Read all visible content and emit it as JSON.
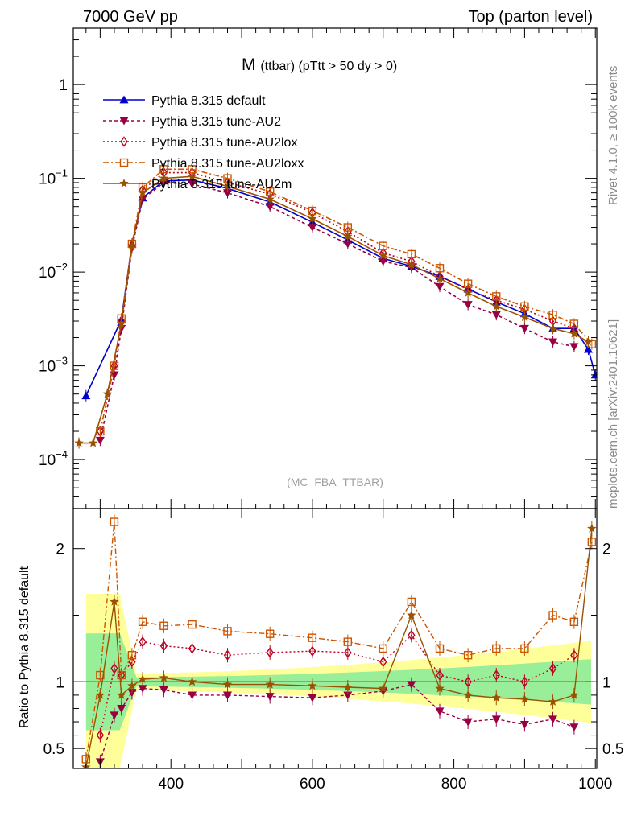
{
  "header": {
    "left": "7000 GeV pp",
    "right": "Top (parton level)"
  },
  "sidebar": {
    "rivet": "Rivet 4.1.0, ≥ 100k events",
    "mcplots": "mcplots.cern.ch [arXiv:2401.10621]"
  },
  "chart_data": {
    "type": "line",
    "title": "M",
    "title_sub": "(ttbar) (pTtt > 50 dy > 0)",
    "analysis_label": "(MC_FBA_TTBAR)",
    "xlabel": "",
    "ylabel": "",
    "ratio_ylabel": "Ratio to Pythia 8.315 default",
    "xlim": [
      262,
      1002
    ],
    "ylim": [
      3e-05,
      4
    ],
    "yscale": "log",
    "ratio_ylim": [
      0.35,
      2.3
    ],
    "x_ticks": [
      "400",
      "600",
      "800",
      "1000"
    ],
    "y_ticks": [
      "1",
      "10^-1",
      "10^-2",
      "10^-3",
      "10^-4"
    ],
    "ratio_ticks": [
      "2",
      "1",
      "0.5"
    ],
    "legend": [
      "Pythia 8.315 default",
      "Pythia 8.315 tune-AU2",
      "Pythia 8.315 tune-AU2lox",
      "Pythia 8.315 tune-AU2loxx",
      "Pythia 8.315 tune-AU2m"
    ],
    "series": [
      {
        "name": "Pythia 8.315 default",
        "color": "#0000cc",
        "marker": "triangle-up",
        "dash": "solid",
        "x": [
          280,
          330,
          345,
          360,
          390,
          430,
          480,
          540,
          600,
          650,
          700,
          740,
          780,
          820,
          860,
          900,
          940,
          970,
          990,
          1000
        ],
        "y": [
          0.00048,
          0.0031,
          0.02,
          0.062,
          0.094,
          0.096,
          0.078,
          0.056,
          0.034,
          0.022,
          0.014,
          0.0115,
          0.009,
          0.0066,
          0.0048,
          0.0036,
          0.0025,
          0.0025,
          0.0015,
          0.0008
        ]
      },
      {
        "name": "Pythia 8.315 tune-AU2",
        "color": "#990044",
        "marker": "triangle-down",
        "dash": "4,3",
        "x": [
          300,
          320,
          330,
          345,
          360,
          390,
          430,
          480,
          540,
          600,
          650,
          700,
          740,
          780,
          820,
          860,
          900,
          940,
          970
        ],
        "y": [
          0.00016,
          0.0008,
          0.0025,
          0.018,
          0.06,
          0.09,
          0.087,
          0.07,
          0.05,
          0.03,
          0.02,
          0.013,
          0.0112,
          0.007,
          0.0045,
          0.0035,
          0.0025,
          0.0018,
          0.0016
        ]
      },
      {
        "name": "Pythia 8.315 tune-AU2lox",
        "color": "#bb0022",
        "marker": "diamond-open",
        "dash": "2,3",
        "x": [
          300,
          320,
          330,
          345,
          360,
          390,
          430,
          480,
          540,
          600,
          650,
          700,
          740,
          780,
          820,
          860,
          900,
          940,
          970
        ],
        "y": [
          0.0002,
          0.001,
          0.003,
          0.019,
          0.075,
          0.115,
          0.115,
          0.09,
          0.068,
          0.043,
          0.027,
          0.016,
          0.013,
          0.009,
          0.0065,
          0.005,
          0.004,
          0.003,
          0.0025
        ]
      },
      {
        "name": "Pythia 8.315 tune-AU2loxx",
        "color": "#cc5500",
        "marker": "square-open",
        "dash": "7,3,2,3",
        "x": [
          300,
          320,
          330,
          345,
          360,
          390,
          430,
          480,
          540,
          600,
          650,
          700,
          740,
          780,
          820,
          860,
          900,
          940,
          970,
          995
        ],
        "y": [
          0.0002,
          0.001,
          0.0032,
          0.02,
          0.08,
          0.125,
          0.125,
          0.1,
          0.072,
          0.045,
          0.03,
          0.019,
          0.0155,
          0.011,
          0.0075,
          0.0055,
          0.0043,
          0.0035,
          0.0028,
          0.0017
        ]
      },
      {
        "name": "Pythia 8.315 tune-AU2m",
        "color": "#9a5200",
        "marker": "star",
        "dash": "solid",
        "x": [
          270,
          290,
          310,
          330,
          345,
          360,
          390,
          430,
          480,
          540,
          600,
          650,
          700,
          740,
          780,
          820,
          860,
          900,
          940,
          970,
          990
        ],
        "y": [
          0.00015,
          0.00015,
          0.0005,
          0.0028,
          0.019,
          0.07,
          0.1,
          0.105,
          0.082,
          0.06,
          0.037,
          0.024,
          0.015,
          0.012,
          0.0085,
          0.006,
          0.0043,
          0.0033,
          0.0025,
          0.0022,
          0.0018
        ]
      }
    ],
    "ratio_series": [
      {
        "name": "Pythia 8.315 tune-AU2",
        "x": [
          300,
          320,
          330,
          345,
          360,
          390,
          430,
          480,
          540,
          600,
          650,
          700,
          740,
          780,
          820,
          860,
          900,
          940,
          970
        ],
        "y": [
          0.4,
          0.75,
          0.8,
          0.92,
          0.95,
          0.94,
          0.9,
          0.9,
          0.89,
          0.88,
          0.9,
          0.93,
          0.98,
          0.78,
          0.7,
          0.72,
          0.68,
          0.72,
          0.66
        ]
      },
      {
        "name": "Pythia 8.315 tune-AU2lox",
        "x": [
          300,
          320,
          330,
          345,
          360,
          390,
          430,
          480,
          540,
          600,
          650,
          700,
          740,
          780,
          820,
          860,
          900,
          940,
          970
        ],
        "y": [
          0.6,
          1.1,
          1.05,
          1.15,
          1.3,
          1.27,
          1.25,
          1.2,
          1.22,
          1.23,
          1.22,
          1.15,
          1.35,
          1.05,
          1.0,
          1.05,
          1.0,
          1.1,
          1.2
        ]
      },
      {
        "name": "Pythia 8.315 tune-AU2loxx",
        "x": [
          280,
          300,
          320,
          330,
          345,
          360,
          390,
          430,
          480,
          540,
          600,
          650,
          700,
          740,
          780,
          820,
          860,
          900,
          940,
          970,
          995
        ],
        "y": [
          0.42,
          1.05,
          2.2,
          1.05,
          1.2,
          1.45,
          1.42,
          1.43,
          1.38,
          1.36,
          1.33,
          1.3,
          1.25,
          1.6,
          1.25,
          1.2,
          1.25,
          1.25,
          1.5,
          1.45,
          2.05
        ]
      },
      {
        "name": "Pythia 8.315 tune-AU2m",
        "x": [
          280,
          300,
          320,
          330,
          345,
          360,
          390,
          430,
          480,
          540,
          600,
          650,
          700,
          740,
          780,
          820,
          860,
          900,
          940,
          970,
          995
        ],
        "y": [
          0.36,
          0.9,
          1.6,
          0.9,
          0.97,
          1.02,
          1.03,
          1.0,
          0.98,
          0.98,
          0.97,
          0.96,
          0.95,
          1.5,
          0.95,
          0.9,
          0.88,
          0.87,
          0.85,
          0.9,
          2.15
        ]
      }
    ]
  }
}
